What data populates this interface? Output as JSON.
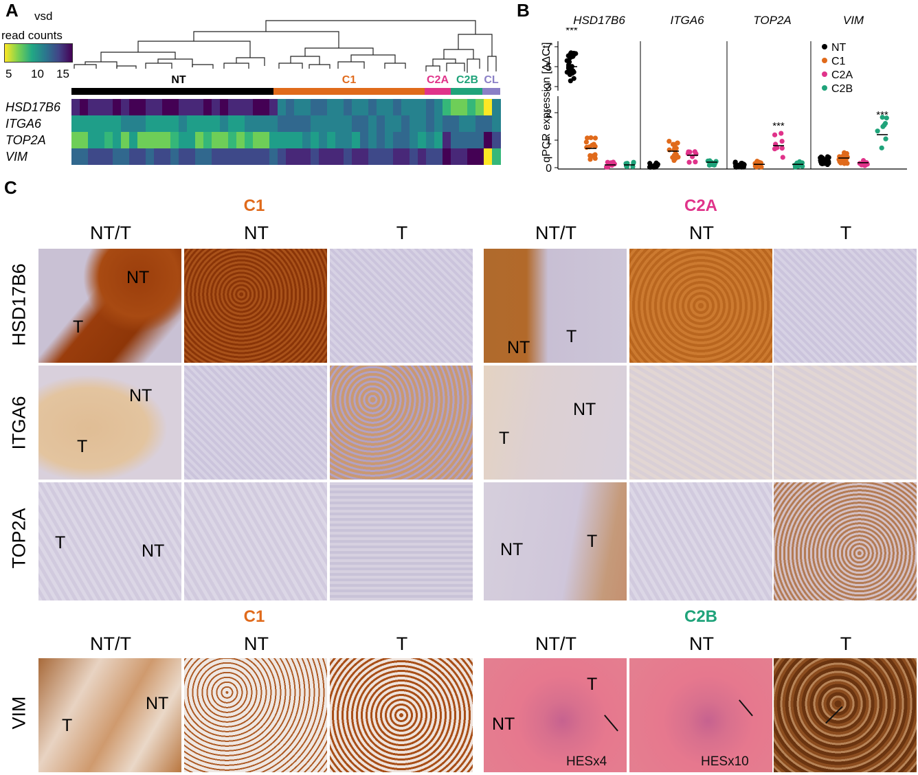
{
  "panels": {
    "A": "A",
    "B": "B",
    "C": "C"
  },
  "panelA": {
    "colorbar_title_1": "vsd",
    "colorbar_title_2": "read counts",
    "colorbar_ticks": [
      "5",
      "10",
      "15"
    ],
    "groups": [
      {
        "name": "NT",
        "color": "#000000"
      },
      {
        "name": "C1",
        "color": "#e06a1b"
      },
      {
        "name": "C2A",
        "color": "#e0338a"
      },
      {
        "name": "C2B",
        "color": "#1fa37a"
      },
      {
        "name": "CL",
        "color": "#8a7fc6"
      }
    ],
    "genes": [
      "HSD17B6",
      "ITGA6",
      "TOP2A",
      "VIM"
    ]
  },
  "chart_data": {
    "type": "scatter",
    "ylabel": "qPCR expression [ΔΔCt]",
    "panels": [
      "HSD17B6",
      "ITGA6",
      "TOP2A",
      "VIM"
    ],
    "groups": [
      "NT",
      "C1",
      "C2A",
      "C2B"
    ],
    "colors": {
      "NT": "#000000",
      "C1": "#e06a1b",
      "C2A": "#e0338a",
      "C2B": "#1fa37a"
    },
    "y_ticks_lower": [
      "0",
      "1",
      "2"
    ],
    "y_ticks_upper": [
      "3",
      "5",
      "7"
    ],
    "mean_values": {
      "HSD17B6": {
        "NT": 5.0,
        "C1": 0.7,
        "C2A": 0.1,
        "C2B": 0.1
      },
      "ITGA6": {
        "NT": 0.05,
        "C1": 0.6,
        "C2A": 0.45,
        "C2B": 0.2
      },
      "TOP2A": {
        "NT": 0.1,
        "C1": 0.12,
        "C2A": 0.8,
        "C2B": 0.12
      },
      "VIM": {
        "NT": 0.25,
        "C1": 0.35,
        "C2A": 0.18,
        "C2B": 1.2
      }
    },
    "significance": {
      "HSD17B6": "***",
      "TOP2A": "***",
      "VIM": "***"
    }
  },
  "panelC": {
    "top_groups": {
      "left": "C1",
      "right": "C2A"
    },
    "bottom_groups": {
      "left": "C1",
      "right": "C2B"
    },
    "group_colors": {
      "C1": "#e06a1b",
      "C2A": "#e0338a",
      "C2B": "#1fa37a"
    },
    "columns": [
      "NT/T",
      "NT",
      "T",
      "NT/T",
      "NT",
      "T"
    ],
    "rows": [
      "HSD17B6",
      "ITGA6",
      "TOP2A",
      "VIM"
    ],
    "tile_labels": {
      "nt": "NT",
      "t": "T"
    },
    "hes_labels": [
      "HESx4",
      "HESx10"
    ]
  }
}
